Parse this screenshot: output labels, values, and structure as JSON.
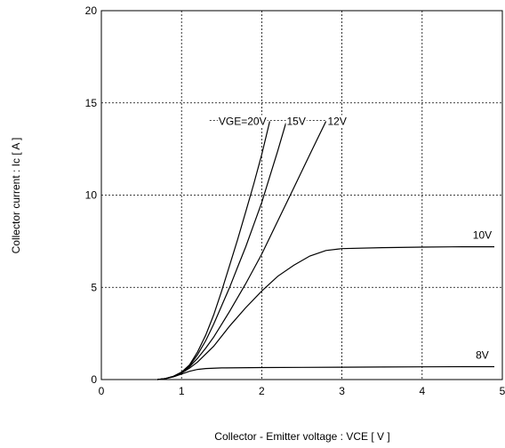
{
  "chart_data": {
    "type": "line",
    "title": "",
    "xlabel": "Collector - Emitter voltage  :  VCE  [ V ]",
    "ylabel": "Collector current  :  Ic  [ A ]",
    "xlim": [
      0,
      5
    ],
    "ylim": [
      0,
      20
    ],
    "xticks": [
      0,
      1,
      2,
      3,
      4,
      5
    ],
    "yticks": [
      0,
      5,
      10,
      15,
      20
    ],
    "grid": true,
    "label_prefix": "VGE=",
    "series": [
      {
        "name": "20V",
        "x": [
          0.7,
          0.8,
          0.9,
          1.0,
          1.1,
          1.2,
          1.3,
          1.4,
          1.5,
          1.6,
          1.7,
          1.8,
          1.9,
          2.0,
          2.1
        ],
        "y": [
          0.0,
          0.06,
          0.18,
          0.4,
          0.8,
          1.5,
          2.4,
          3.5,
          4.8,
          6.2,
          7.6,
          9.1,
          10.6,
          12.2,
          14.0
        ]
      },
      {
        "name": "15V",
        "x": [
          0.7,
          0.8,
          0.9,
          1.0,
          1.1,
          1.2,
          1.3,
          1.4,
          1.5,
          1.6,
          1.7,
          1.8,
          1.9,
          2.0,
          2.1,
          2.2,
          2.3
        ],
        "y": [
          0.0,
          0.06,
          0.18,
          0.4,
          0.75,
          1.35,
          2.1,
          3.0,
          4.0,
          5.0,
          6.1,
          7.2,
          8.4,
          9.6,
          11.0,
          12.4,
          13.9
        ]
      },
      {
        "name": "12V",
        "x": [
          0.7,
          0.8,
          0.9,
          1.0,
          1.1,
          1.2,
          1.3,
          1.4,
          1.5,
          1.6,
          1.8,
          2.0,
          2.2,
          2.4,
          2.6,
          2.8
        ],
        "y": [
          0.0,
          0.06,
          0.17,
          0.38,
          0.7,
          1.15,
          1.7,
          2.3,
          3.0,
          3.7,
          5.2,
          6.8,
          8.6,
          10.4,
          12.2,
          14.0
        ]
      },
      {
        "name": "10V",
        "x": [
          0.7,
          0.8,
          0.9,
          1.0,
          1.1,
          1.2,
          1.4,
          1.6,
          1.8,
          2.0,
          2.2,
          2.4,
          2.6,
          2.8,
          3.0,
          3.5,
          4.0,
          4.5,
          4.9
        ],
        "y": [
          0.0,
          0.06,
          0.16,
          0.35,
          0.62,
          0.95,
          1.8,
          2.9,
          3.9,
          4.8,
          5.6,
          6.2,
          6.7,
          7.0,
          7.1,
          7.15,
          7.18,
          7.2,
          7.2
        ]
      },
      {
        "name": "8V",
        "x": [
          0.7,
          0.8,
          0.9,
          1.0,
          1.1,
          1.2,
          1.3,
          1.5,
          2.0,
          2.5,
          3.0,
          3.5,
          4.0,
          4.5,
          4.9
        ],
        "y": [
          0.0,
          0.05,
          0.15,
          0.3,
          0.45,
          0.55,
          0.6,
          0.63,
          0.65,
          0.66,
          0.67,
          0.68,
          0.69,
          0.7,
          0.7
        ]
      }
    ]
  }
}
